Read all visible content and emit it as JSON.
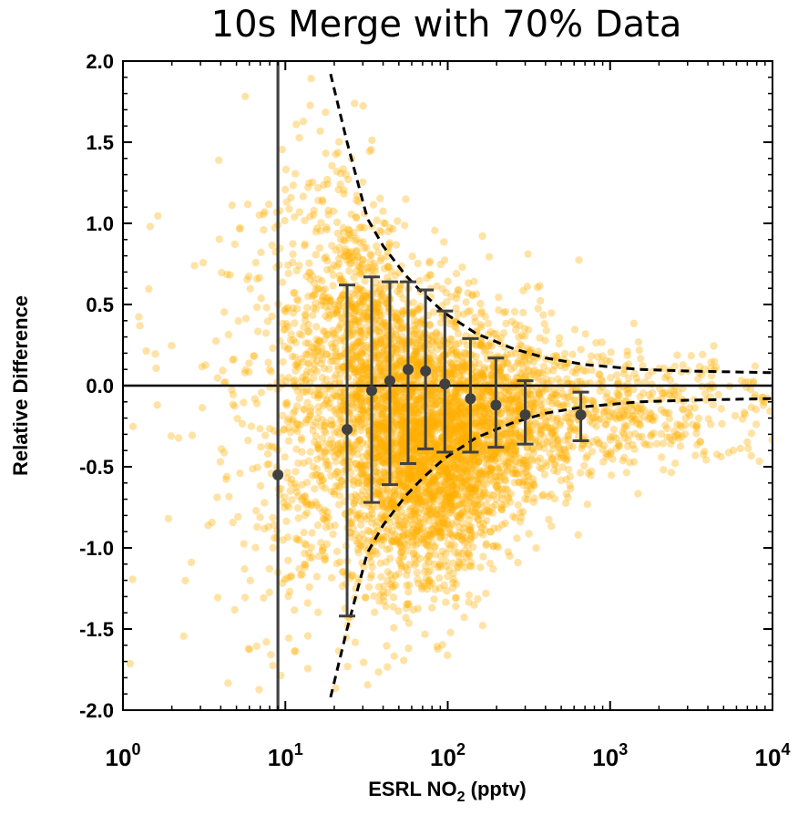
{
  "chart_data": {
    "type": "scatter",
    "title": "10s Merge with 70% Data",
    "xlabel": {
      "prefix": "ESRL NO",
      "subscript": "2",
      "suffix": " (pptv)"
    },
    "ylabel": "Relative Difference",
    "x_scale": "log",
    "xlim": [
      1,
      10000
    ],
    "ylim": [
      -2.0,
      2.0
    ],
    "x_ticks": [
      {
        "value": 1,
        "base": "10",
        "exp": "0"
      },
      {
        "value": 10,
        "base": "10",
        "exp": "1"
      },
      {
        "value": 100,
        "base": "10",
        "exp": "2"
      },
      {
        "value": 1000,
        "base": "10",
        "exp": "3"
      },
      {
        "value": 10000,
        "base": "10",
        "exp": "4"
      }
    ],
    "y_ticks": [
      {
        "value": 2.0,
        "label": "2.0"
      },
      {
        "value": 1.5,
        "label": "1.5"
      },
      {
        "value": 1.0,
        "label": "1.0"
      },
      {
        "value": 0.5,
        "label": "0.5"
      },
      {
        "value": 0.0,
        "label": "0.0"
      },
      {
        "value": -0.5,
        "label": "-0.5"
      },
      {
        "value": -1.0,
        "label": "-1.0"
      },
      {
        "value": -1.5,
        "label": "-1.5"
      },
      {
        "value": -2.0,
        "label": "-2.0"
      }
    ],
    "grid": false,
    "colors": {
      "points": "#FFB000",
      "markers": "#404040",
      "lines": "#000000"
    },
    "binned_means": [
      {
        "x": 9,
        "y": -0.55,
        "low": -2.0,
        "high": 2.0
      },
      {
        "x": 24,
        "y": -0.27,
        "low": -1.42,
        "high": 0.62
      },
      {
        "x": 34,
        "y": -0.03,
        "low": -0.72,
        "high": 0.67
      },
      {
        "x": 44,
        "y": 0.03,
        "low": -0.61,
        "high": 0.64
      },
      {
        "x": 57,
        "y": 0.1,
        "low": -0.48,
        "high": 0.64
      },
      {
        "x": 73,
        "y": 0.09,
        "low": -0.39,
        "high": 0.59
      },
      {
        "x": 96,
        "y": 0.01,
        "low": -0.41,
        "high": 0.46
      },
      {
        "x": 138,
        "y": -0.08,
        "low": -0.41,
        "high": 0.29
      },
      {
        "x": 198,
        "y": -0.12,
        "low": -0.38,
        "high": 0.17
      },
      {
        "x": 300,
        "y": -0.18,
        "low": -0.36,
        "high": 0.03
      },
      {
        "x": 660,
        "y": -0.18,
        "low": -0.34,
        "high": -0.04
      }
    ],
    "uncertainty_envelope": {
      "upper": [
        [
          19,
          1.92
        ],
        [
          24,
          1.5
        ],
        [
          32,
          1.03
        ],
        [
          40,
          0.86
        ],
        [
          55,
          0.68
        ],
        [
          70,
          0.57
        ],
        [
          95,
          0.45
        ],
        [
          150,
          0.32
        ],
        [
          250,
          0.23
        ],
        [
          400,
          0.17
        ],
        [
          700,
          0.13
        ],
        [
          1500,
          0.1
        ],
        [
          3000,
          0.09
        ],
        [
          10000,
          0.08
        ]
      ],
      "lower": [
        [
          19,
          -1.92
        ],
        [
          24,
          -1.5
        ],
        [
          32,
          -1.03
        ],
        [
          40,
          -0.86
        ],
        [
          55,
          -0.68
        ],
        [
          70,
          -0.57
        ],
        [
          95,
          -0.45
        ],
        [
          150,
          -0.32
        ],
        [
          250,
          -0.23
        ],
        [
          400,
          -0.17
        ],
        [
          700,
          -0.13
        ],
        [
          1500,
          -0.1
        ],
        [
          3000,
          -0.09
        ],
        [
          10000,
          -0.08
        ]
      ]
    },
    "vertical_line_x": 9,
    "horizontal_line_y": 0
  }
}
